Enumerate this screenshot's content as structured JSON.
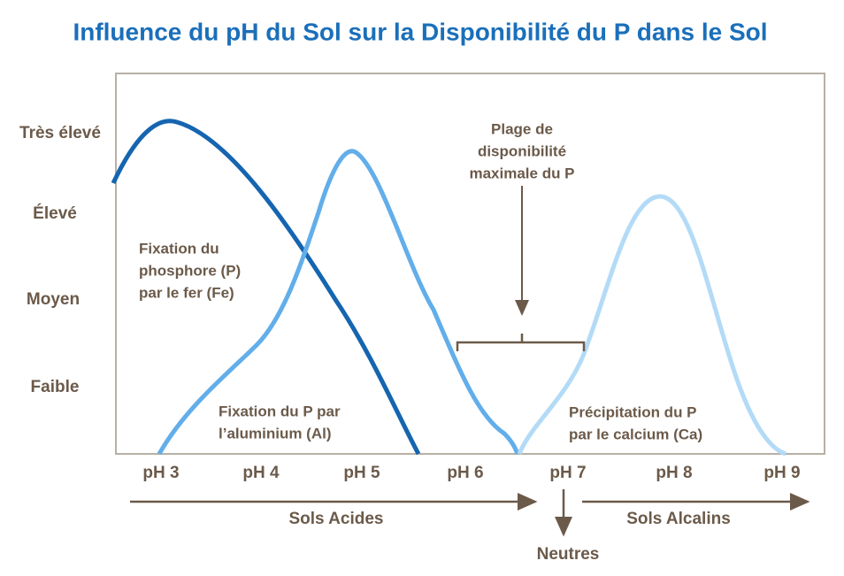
{
  "title": "Influence du pH du Sol sur la Disponibilité du P dans le Sol",
  "y_levels": [
    "Très élevé",
    "Élevé",
    "Moyen",
    "Faible"
  ],
  "x_labels": [
    "pH 3",
    "pH 4",
    "pH 5",
    "pH 6",
    "pH 7",
    "pH 8",
    "pH 9"
  ],
  "annotations": {
    "iron": [
      "Fixation du",
      "phosphore (P)",
      "par le fer (Fe)"
    ],
    "aluminium": [
      "Fixation du P par",
      "l’aluminium (Al)"
    ],
    "max_range": [
      "Plage de",
      "disponibilité",
      "maximale du P"
    ],
    "calcium": [
      "Précipitation du P",
      "par le calcium (Ca)"
    ]
  },
  "zones": {
    "acid": "Sols Acides",
    "neutral": "Neutres",
    "alkaline": "Sols Alcalins"
  }
}
